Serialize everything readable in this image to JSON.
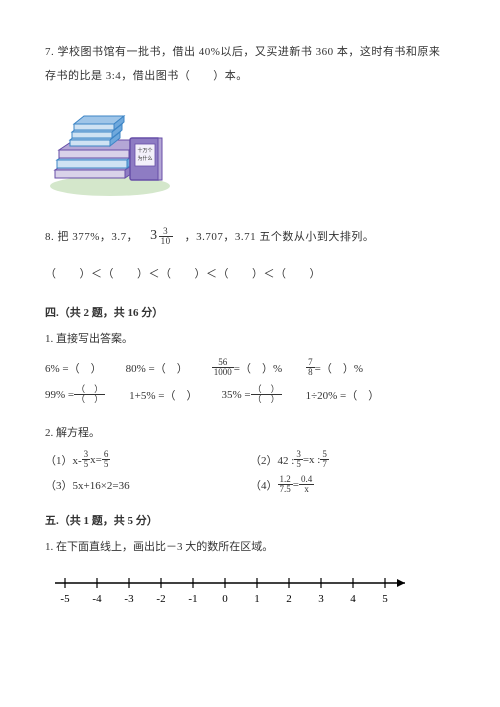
{
  "q7": {
    "text1": "7. 学校图书馆有一批书，借出 40%以后，又买进新书 360 本，这时有书和原来",
    "text2": "存书的比是 3:4，借出图书（　　）本。",
    "image": {
      "book_label": "十万个\n为什么",
      "stack_color": "#6fa8dc",
      "accent_color": "#3d85c6",
      "purple_book": "#8e7cc3",
      "green_base": "#93c47d"
    }
  },
  "q8": {
    "text": "8. 把 377%，3.7，",
    "mixed_whole": "3",
    "mixed_num": "3",
    "mixed_den": "10",
    "text2": "，3.707，3.71 五个数从小到大排列。",
    "answer_line": "（　　）＜（　　）＜（　　）＜（　　）＜（　　）"
  },
  "section4": {
    "header": "四.（共 2 题，共 16 分）",
    "item1": "1. 直接写出答案。",
    "calc_row1": {
      "c1": "6% =（　）",
      "c2": "80% =（　）",
      "c3_num": "56",
      "c3_den": "1000",
      "c3_suffix": " =（　）%",
      "c4_num": "7",
      "c4_den": "8",
      "c4_suffix": " =（　）%"
    },
    "calc_row2": {
      "c1_prefix": "99% =",
      "c2": "1+5% =（　）",
      "c3_prefix": "35% =",
      "c4": "1÷20% =（　）"
    },
    "item2": "2. 解方程。",
    "eq1_prefix": "（1）x- ",
    "eq1_n1": "3",
    "eq1_d1": "5",
    "eq1_mid": " x= ",
    "eq1_n2": "6",
    "eq1_d2": "5",
    "eq2_prefix": "（2）42 : ",
    "eq2_n1": "3",
    "eq2_d1": "5",
    "eq2_mid": " =x : ",
    "eq2_n2": "5",
    "eq2_d2": "7",
    "eq3": "（3）5x+16×2=36",
    "eq4_prefix": "（4）",
    "eq4_n1": "1.2",
    "eq4_d1": "7.5",
    "eq4_eq": " = ",
    "eq4_n2": "0.4",
    "eq4_d2": "x"
  },
  "section5": {
    "header": "五.（共 1 题，共 5 分）",
    "item1": "1. 在下面直线上，画出比－3 大的数所在区域。",
    "numberline": {
      "ticks": [
        "-5",
        "-4",
        "-3",
        "-2",
        "-1",
        "0",
        "1",
        "2",
        "3",
        "4",
        "5"
      ]
    }
  }
}
